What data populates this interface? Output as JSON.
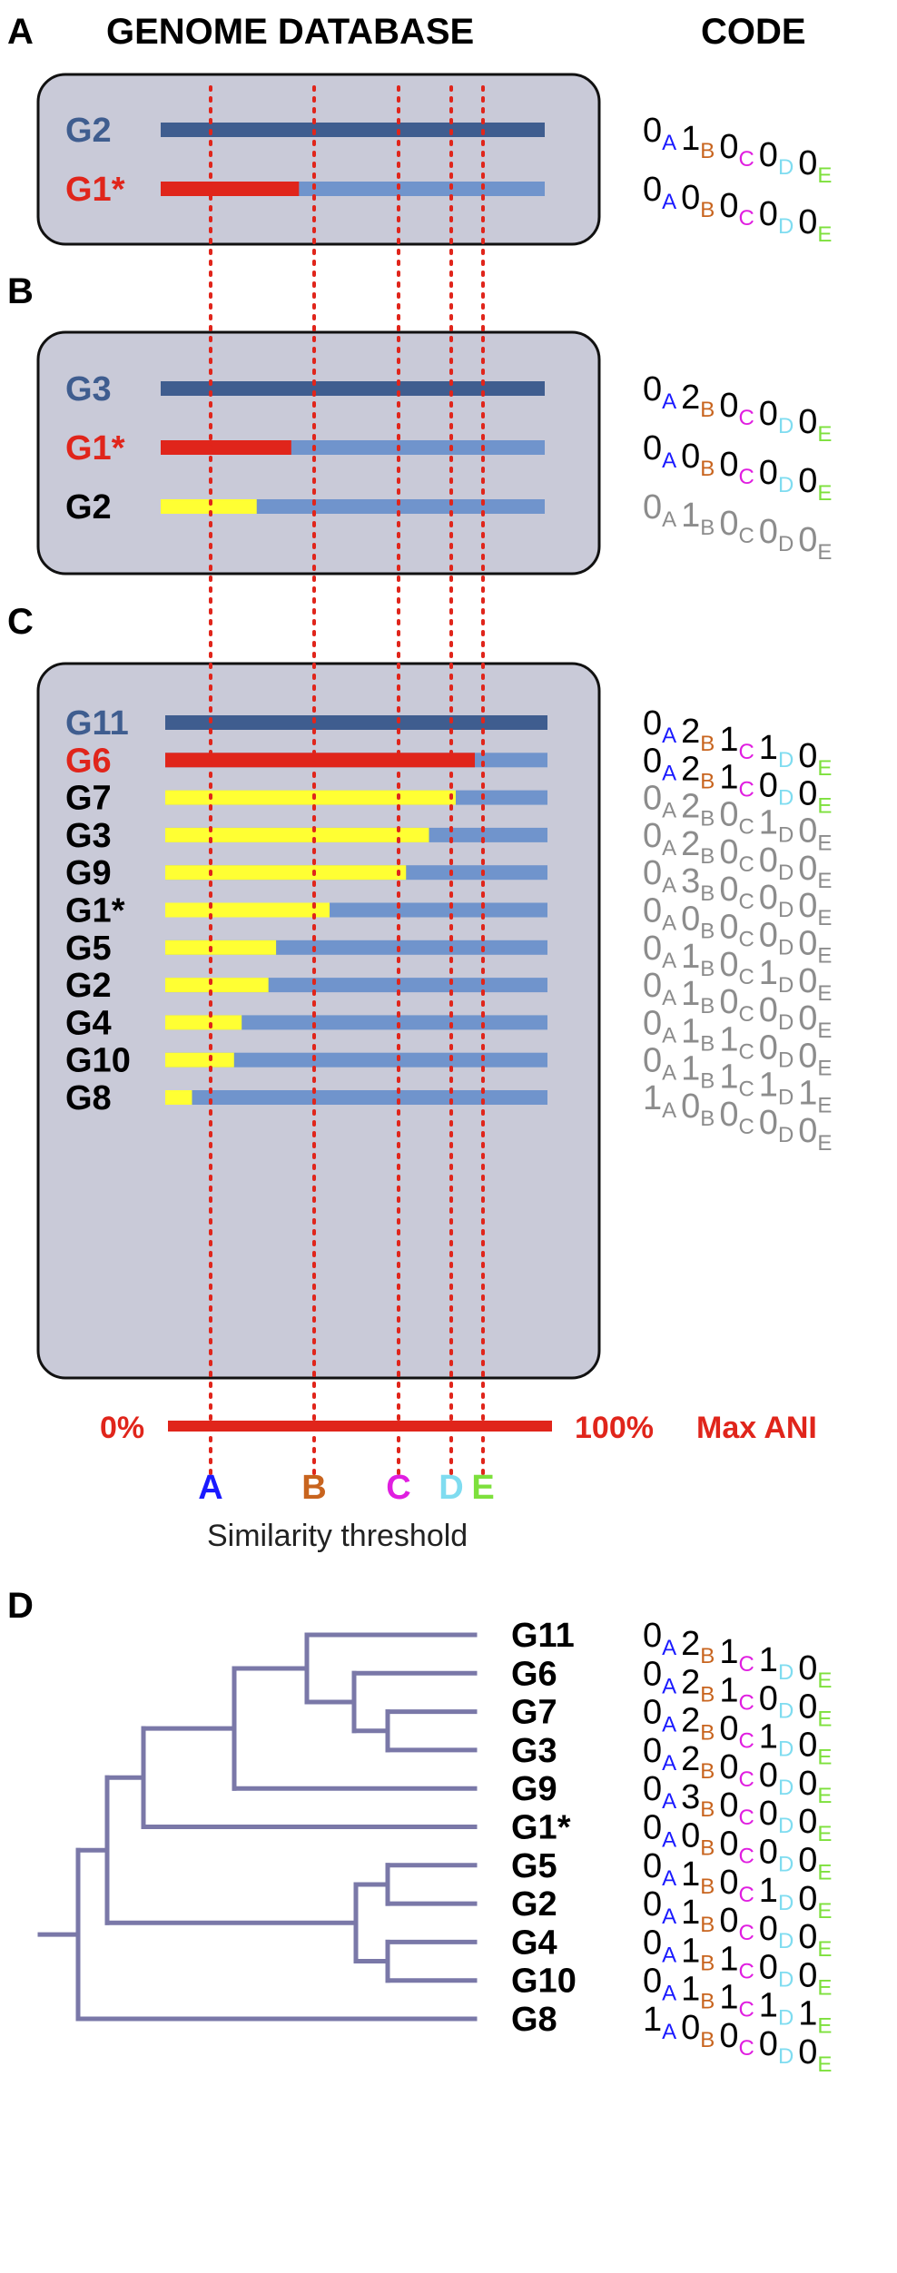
{
  "headers": {
    "database": "GENOME DATABASE",
    "code": "CODE"
  },
  "panels": [
    "A",
    "B",
    "C",
    "D"
  ],
  "colors": {
    "reference": "#3f5d8f",
    "query": "#e0251b",
    "hit": "#ffff33",
    "bar_bg": "#7094cc",
    "box_fill": "#c9cad8",
    "dash": "#e0251b",
    "tree": "#7a78a8",
    "gray": "#8c8c8c"
  },
  "thresholds": [
    {
      "letter": "A",
      "color": "#1a1aff"
    },
    {
      "letter": "B",
      "color": "#c8641e"
    },
    {
      "letter": "C",
      "color": "#e01ee0"
    },
    {
      "letter": "D",
      "color": "#7fdcf0"
    },
    {
      "letter": "E",
      "color": "#7de03c"
    }
  ],
  "axis": {
    "min_label": "0%",
    "max_label": "100%",
    "name": "Max ANI",
    "caption": "Similarity threshold"
  },
  "panel_a": [
    {
      "genome": "G2",
      "role": "reference",
      "code": "01000"
    },
    {
      "genome": "G1*",
      "role": "query",
      "similarity": 0.36,
      "code": "00000"
    }
  ],
  "panel_b": [
    {
      "genome": "G3",
      "role": "reference",
      "code": "02000"
    },
    {
      "genome": "G1*",
      "role": "query",
      "similarity": 0.34,
      "code": "00000"
    },
    {
      "genome": "G2",
      "role": "hit",
      "similarity": 0.25,
      "code": "01000"
    }
  ],
  "panel_c": [
    {
      "genome": "G11",
      "role": "reference",
      "code": "02110"
    },
    {
      "genome": "G6",
      "role": "query",
      "similarity": 0.81,
      "code": "02100"
    },
    {
      "genome": "G7",
      "role": "hit",
      "similarity": 0.76,
      "code": "02010"
    },
    {
      "genome": "G3",
      "role": "hit",
      "similarity": 0.69,
      "code": "02000"
    },
    {
      "genome": "G9",
      "role": "hit",
      "similarity": 0.63,
      "code": "03000"
    },
    {
      "genome": "G1*",
      "role": "hit",
      "similarity": 0.43,
      "code": "00000"
    },
    {
      "genome": "G5",
      "role": "hit",
      "similarity": 0.29,
      "code": "01010"
    },
    {
      "genome": "G2",
      "role": "hit",
      "similarity": 0.27,
      "code": "01000"
    },
    {
      "genome": "G4",
      "role": "hit",
      "similarity": 0.2,
      "code": "01100"
    },
    {
      "genome": "G10",
      "role": "hit",
      "similarity": 0.18,
      "code": "01111"
    },
    {
      "genome": "G8",
      "role": "hit",
      "similarity": 0.07,
      "code": "10000"
    }
  ],
  "panel_d": [
    {
      "genome": "G11",
      "code": "02110"
    },
    {
      "genome": "G6",
      "code": "02100"
    },
    {
      "genome": "G7",
      "code": "02010"
    },
    {
      "genome": "G3",
      "code": "02000"
    },
    {
      "genome": "G9",
      "code": "03000"
    },
    {
      "genome": "G1*",
      "code": "00000"
    },
    {
      "genome": "G5",
      "code": "01010"
    },
    {
      "genome": "G2",
      "code": "01000"
    },
    {
      "genome": "G4",
      "code": "01100"
    },
    {
      "genome": "G10",
      "code": "01111"
    },
    {
      "genome": "G8",
      "code": "10000"
    }
  ]
}
